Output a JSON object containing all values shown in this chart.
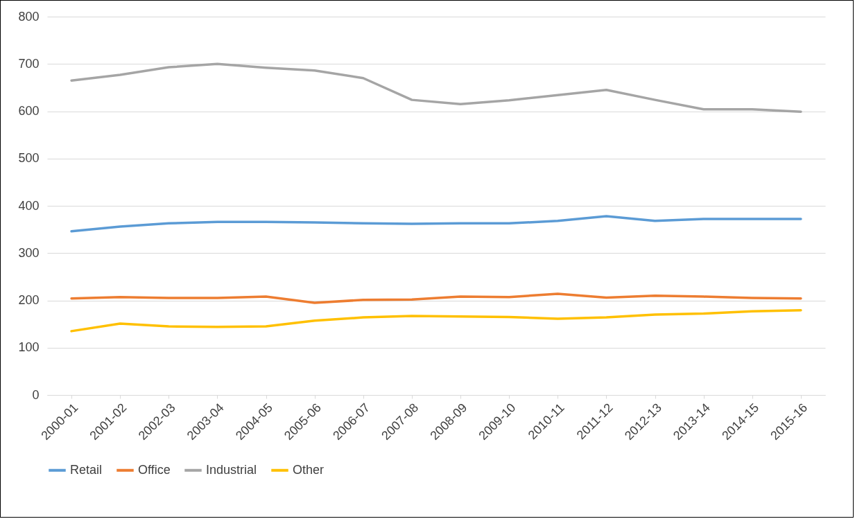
{
  "chart_data": {
    "type": "line",
    "categories": [
      "2000-01",
      "2001-02",
      "2002-03",
      "2003-04",
      "2004-05",
      "2005-06",
      "2006-07",
      "2007-08",
      "2008-09",
      "2009-10",
      "2010-11",
      "2011-12",
      "2012-13",
      "2013-14",
      "2014-15",
      "2015-16"
    ],
    "series": [
      {
        "name": "Retail",
        "color": "#5b9bd5",
        "values": [
          346,
          356,
          363,
          366,
          366,
          365,
          363,
          362,
          363,
          363,
          368,
          378,
          368,
          372,
          372,
          372
        ]
      },
      {
        "name": "Office",
        "color": "#ed7d31",
        "values": [
          204,
          207,
          205,
          205,
          208,
          195,
          201,
          202,
          208,
          207,
          214,
          206,
          210,
          208,
          205,
          204
        ]
      },
      {
        "name": "Industrial",
        "color": "#a5a5a5",
        "values": [
          665,
          677,
          693,
          700,
          692,
          686,
          670,
          624,
          615,
          623,
          634,
          645,
          624,
          604,
          604,
          599
        ]
      },
      {
        "name": "Other",
        "color": "#ffc000",
        "values": [
          135,
          151,
          145,
          144,
          145,
          157,
          164,
          167,
          166,
          165,
          161,
          164,
          170,
          172,
          177,
          179
        ]
      }
    ],
    "ylim": [
      0,
      800
    ],
    "yticks": [
      0,
      100,
      200,
      300,
      400,
      500,
      600,
      700,
      800
    ],
    "grid": "y",
    "legend": "bottom",
    "marker": "none",
    "line_style": "solid"
  }
}
